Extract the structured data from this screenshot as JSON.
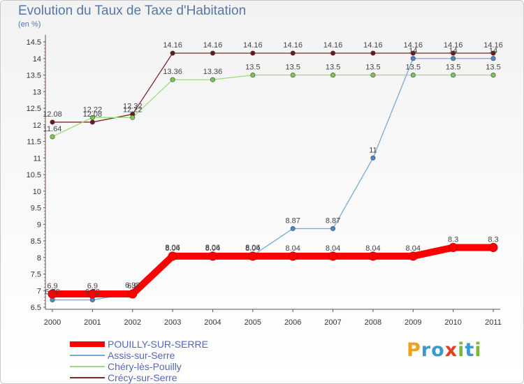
{
  "title": "Evolution du Taux de Taxe d'Habitation",
  "subtitle": "(en %)",
  "brand": {
    "text": "Proxiti",
    "letters": [
      {
        "ch": "P",
        "color": "#f0a020"
      },
      {
        "ch": "r",
        "color": "#3a9ad0"
      },
      {
        "ch": "o",
        "color": "#3a9ad0"
      },
      {
        "ch": "x",
        "color": "#e04020"
      },
      {
        "ch": "i",
        "color": "#7ab83a"
      },
      {
        "ch": "t",
        "color": "#3a9ad0"
      },
      {
        "ch": "i",
        "color": "#7ab83a"
      }
    ]
  },
  "chart_data": {
    "type": "line",
    "title": "Evolution du Taux de Taxe d'Habitation",
    "ylabel": "(en %)",
    "xlabel": "",
    "x": [
      "2000",
      "2001",
      "2002",
      "2003",
      "2004",
      "2005",
      "2006",
      "2007",
      "2008",
      "2009",
      "2010",
      "2011"
    ],
    "ylim": [
      6.5,
      14.5
    ],
    "yticks": [
      "6.5",
      "7",
      "7.5",
      "8",
      "8.5",
      "9",
      "9.5",
      "10",
      "10.5",
      "11",
      "11.5",
      "12",
      "12.5",
      "13",
      "13.5",
      "14",
      "14.5"
    ],
    "grid": false,
    "series": [
      {
        "name": "POUILLY-SUR-SERRE",
        "color": "#ff0000",
        "marker": "#ff0000",
        "values": [
          6.9,
          6.9,
          6.9,
          8.04,
          8.04,
          8.04,
          8.04,
          8.04,
          8.04,
          8.04,
          8.3,
          8.3
        ],
        "labels": [
          "6.9",
          "6.9",
          "6.9",
          "8.04",
          "8.04",
          "8.04",
          "8.04",
          "8.04",
          "8.04",
          "8.04",
          "8.3",
          "8.3"
        ]
      },
      {
        "name": "Assis-sur-Serre",
        "color": "#7aaad2",
        "marker": "#4a88c8",
        "values": [
          6.72,
          6.72,
          6.92,
          8.06,
          8.06,
          8.06,
          8.87,
          8.87,
          11,
          14,
          14,
          14
        ],
        "labels": [
          "6.72",
          "6.72",
          "6.92",
          "8.06",
          "8.06",
          "8.06",
          "8.87",
          "8.87",
          "11",
          "14",
          "14",
          "14"
        ]
      },
      {
        "name": "Chéry-lès-Pouilly",
        "color": "#9cdc7a",
        "marker": "#7cc84e",
        "values": [
          11.64,
          12.22,
          12.22,
          13.36,
          13.36,
          13.5,
          13.5,
          13.5,
          13.5,
          13.5,
          13.5,
          13.5
        ],
        "labels": [
          "11.64",
          "12.22",
          "12.22",
          "13.36",
          "13.36",
          "13.5",
          "13.5",
          "13.5",
          "13.5",
          "13.5",
          "13.5",
          "13.5"
        ]
      },
      {
        "name": "Crécy-sur-Serre",
        "color": "#7a2a2a",
        "marker": "#6a1818",
        "values": [
          12.08,
          12.08,
          12.32,
          14.16,
          14.16,
          14.16,
          14.16,
          14.16,
          14.16,
          14.16,
          14.16,
          14.16
        ],
        "labels": [
          "12.08",
          "12.08",
          "12.32",
          "14.16",
          "14.16",
          "14.16",
          "14.16",
          "14.16",
          "14.16",
          "14.16",
          "14.16",
          "14.16"
        ]
      }
    ]
  }
}
